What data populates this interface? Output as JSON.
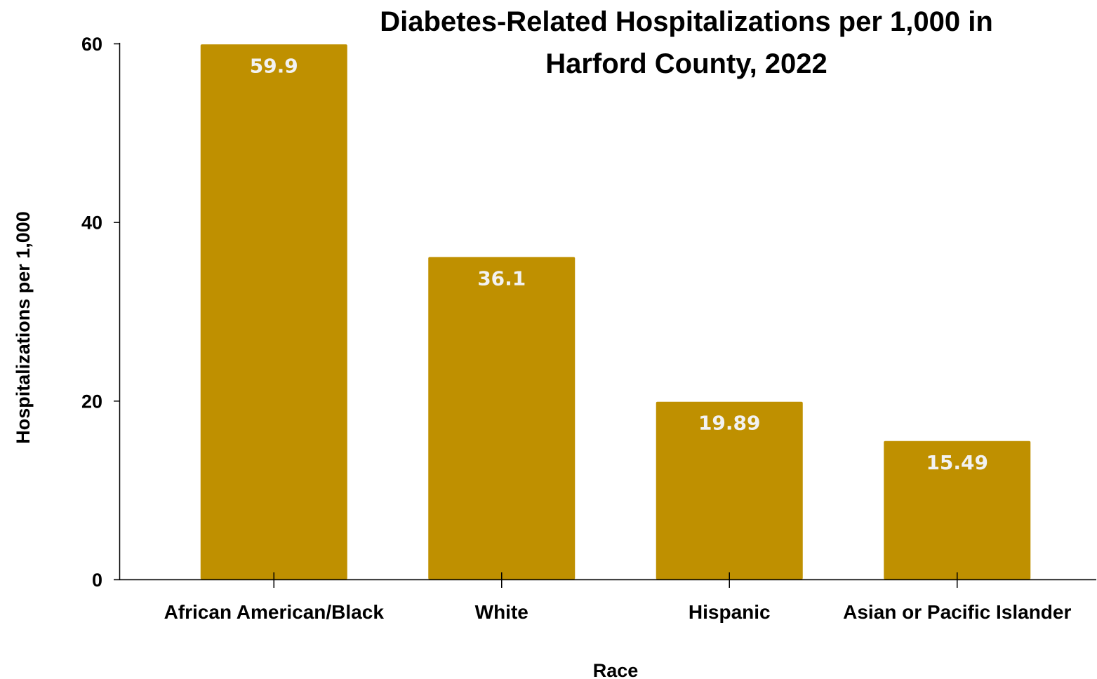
{
  "chart_data": {
    "type": "bar",
    "title_lines": [
      "Diabetes-Related Hospitalizations per 1,000 in",
      "Harford County, 2022"
    ],
    "xlabel": "Race",
    "ylabel": "Hospitalizations per 1,000",
    "categories": [
      "African American/Black",
      "White",
      "Hispanic",
      "Asian or Pacific Islander"
    ],
    "values": [
      59.9,
      36.1,
      19.89,
      15.49
    ],
    "data_labels": [
      "59.9",
      "36.1",
      "19.89",
      "15.49"
    ],
    "ylim": [
      0,
      60
    ],
    "yticks": [
      0,
      20,
      40,
      60
    ],
    "ytick_labels": [
      "0",
      "20",
      "40",
      "60"
    ],
    "grid": false,
    "legend": "none",
    "colors": {
      "bar": "#bf9000",
      "data_label": "#f2f2f2",
      "axis": "#000000"
    }
  }
}
